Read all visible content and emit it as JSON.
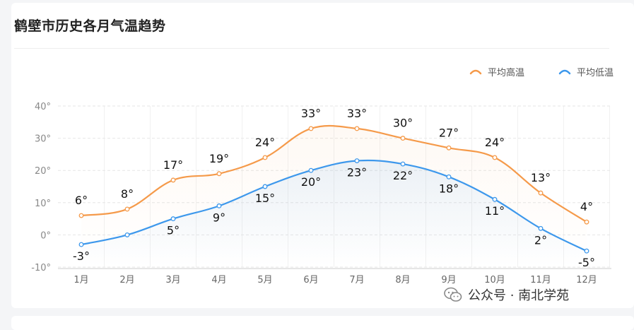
{
  "title": "鹤壁市历史各月气温趋势",
  "watermark": "公众号 · 南北学苑",
  "chart_data": {
    "type": "line",
    "categories": [
      "1月",
      "2月",
      "3月",
      "4月",
      "5月",
      "6月",
      "7月",
      "8月",
      "9月",
      "10月",
      "11月",
      "12月"
    ],
    "series": [
      {
        "name": "平均高温",
        "values": [
          6,
          8,
          17,
          19,
          24,
          33,
          33,
          30,
          27,
          24,
          13,
          4
        ],
        "color": "#f59a4a"
      },
      {
        "name": "平均低温",
        "values": [
          -3,
          0,
          5,
          9,
          15,
          20,
          23,
          22,
          18,
          11,
          2,
          -5
        ],
        "color": "#3d98ec"
      }
    ],
    "data_labels_hi": [
      "6°",
      "8°",
      "17°",
      "19°",
      "24°",
      "33°",
      "33°",
      "30°",
      "27°",
      "24°",
      "13°",
      "4°"
    ],
    "data_labels_lo": [
      "-3°",
      "",
      "5°",
      "9°",
      "15°",
      "20°",
      "23°",
      "22°",
      "18°",
      "11°",
      "2°",
      "-5°"
    ],
    "yticks": [
      "40°",
      "30°",
      "20°",
      "10°",
      "0°",
      "-10°"
    ],
    "ylim": [
      -10,
      40
    ],
    "legend_position": "top-right",
    "grid": true
  }
}
